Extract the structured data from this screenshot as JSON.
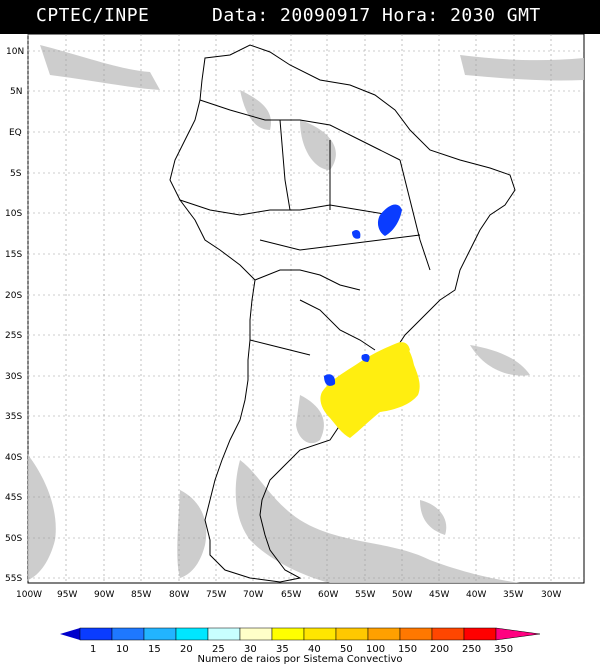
{
  "header": {
    "title": "CPTEC/INPE",
    "date_text": "Data: 20090917 Hora: 2030 GMT"
  },
  "map": {
    "lat_labels": [
      "10N",
      "5N",
      "EQ",
      "5S",
      "10S",
      "15S",
      "20S",
      "25S",
      "30S",
      "35S",
      "40S",
      "45S",
      "50S",
      "55S"
    ],
    "lon_labels": [
      "100W",
      "95W",
      "90W",
      "85W",
      "80W",
      "75W",
      "70W",
      "65W",
      "60W",
      "55W",
      "50W",
      "45W",
      "40W",
      "35W",
      "30W"
    ],
    "colors": {
      "cloud": "#c8c8c8",
      "coast": "#000000",
      "grid": "#9a9a9a",
      "blue_cells": "#0a3cff",
      "yellow_cells": "#ffee10"
    }
  },
  "colorbar": {
    "values": [
      "1",
      "10",
      "15",
      "20",
      "25",
      "30",
      "35",
      "40",
      "50",
      "100",
      "150",
      "200",
      "250",
      "350"
    ],
    "colors": [
      "#0000cc",
      "#0a3cff",
      "#1e78ff",
      "#22b4ff",
      "#00e6ff",
      "#c8ffff",
      "#ffffc8",
      "#ffff00",
      "#ffe600",
      "#ffc800",
      "#ffa000",
      "#ff7800",
      "#ff4600",
      "#ff0000",
      "#ff0080"
    ],
    "caption": "Numero de raios por Sistema Convectivo"
  }
}
